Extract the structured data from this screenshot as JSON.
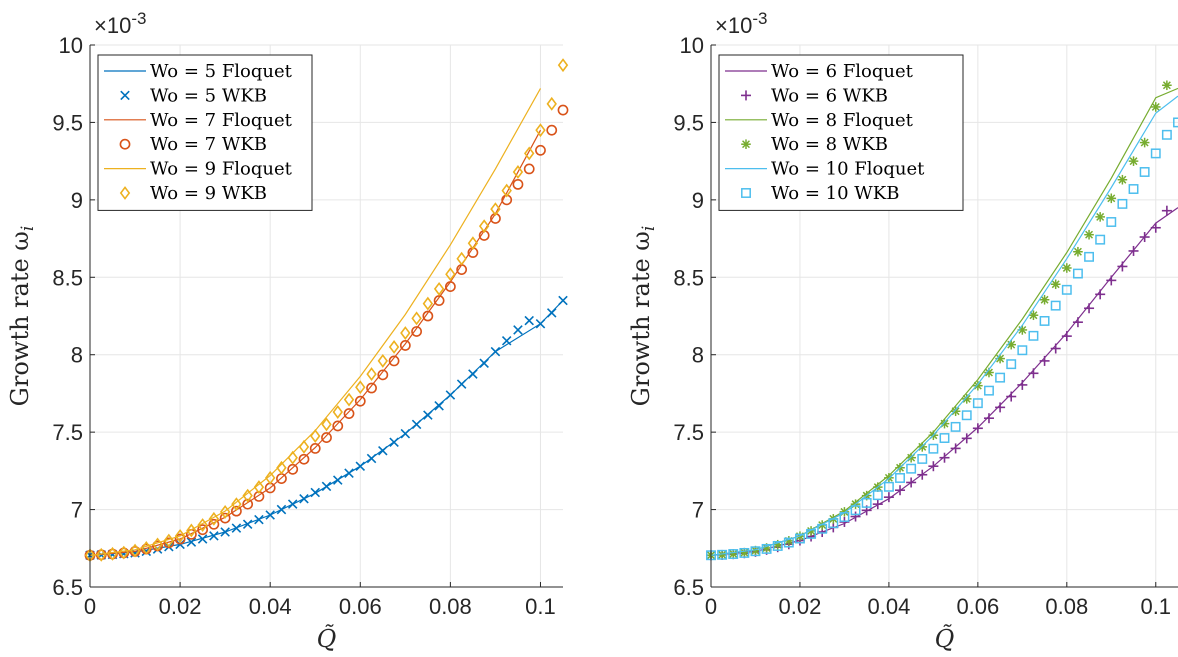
{
  "chart_data": [
    {
      "type": "line",
      "multiplier": "×10",
      "multiplier_exp": "-3",
      "xlabel": "Q̃",
      "ylabel": "Growth rate ω",
      "ylabel_sub": "i",
      "xlim": [
        0,
        0.105
      ],
      "ylim": [
        6.5,
        10
      ],
      "xticks": [
        0,
        0.02,
        0.04,
        0.06,
        0.08,
        0.1
      ],
      "xtick_labels": [
        "0",
        "0.02",
        "0.04",
        "0.06",
        "0.08",
        "0.1"
      ],
      "yticks": [
        6.5,
        7,
        7.5,
        8,
        8.5,
        9,
        9.5,
        10
      ],
      "ytick_labels": [
        "6.5",
        "7",
        "7.5",
        "8",
        "8.5",
        "9",
        "9.5",
        "10"
      ],
      "grid": true,
      "legend_position": "top-left",
      "groups": [
        {
          "wo": 5,
          "color": "#0072BD",
          "marker": "x",
          "floquet_label": "Wo = 5 Floquet",
          "wkb_label": "Wo = 5 WKB",
          "floquet": {
            "x": [
              0,
              0.01,
              0.02,
              0.03,
              0.04,
              0.05,
              0.06,
              0.07,
              0.08,
              0.09,
              0.1,
              0.105
            ],
            "y": [
              6.705,
              6.725,
              6.775,
              6.855,
              6.965,
              7.105,
              7.28,
              7.49,
              7.74,
              8.02,
              8.2,
              8.35
            ]
          },
          "wkb": {
            "x": [
              0,
              0.0025,
              0.005,
              0.0075,
              0.01,
              0.0125,
              0.015,
              0.0175,
              0.02,
              0.0225,
              0.025,
              0.0275,
              0.03,
              0.0325,
              0.035,
              0.0375,
              0.04,
              0.0425,
              0.045,
              0.0475,
              0.05,
              0.0525,
              0.055,
              0.0575,
              0.06,
              0.0625,
              0.065,
              0.0675,
              0.07,
              0.0725,
              0.075,
              0.0775,
              0.08,
              0.0825,
              0.085,
              0.0875,
              0.09,
              0.0925,
              0.095,
              0.0975,
              0.1,
              0.1025,
              0.105
            ],
            "y": [
              6.705,
              6.707,
              6.71,
              6.715,
              6.72,
              6.73,
              6.745,
              6.76,
              6.775,
              6.79,
              6.81,
              6.83,
              6.855,
              6.88,
              6.905,
              6.935,
              6.965,
              7.0,
              7.035,
              7.07,
              7.11,
              7.15,
              7.19,
              7.235,
              7.28,
              7.33,
              7.38,
              7.435,
              7.49,
              7.55,
              7.61,
              7.67,
              7.74,
              7.81,
              7.875,
              7.945,
              8.02,
              8.09,
              8.16,
              8.22,
              8.2,
              8.27,
              8.35
            ]
          }
        },
        {
          "wo": 7,
          "color": "#D95319",
          "marker": "o",
          "floquet_label": "Wo = 7 Floquet",
          "wkb_label": "Wo = 7 WKB",
          "floquet": {
            "x": [
              0,
              0.01,
              0.02,
              0.03,
              0.04,
              0.05,
              0.06,
              0.07,
              0.08,
              0.09,
              0.1
            ],
            "y": [
              6.705,
              6.73,
              6.81,
              6.95,
              7.14,
              7.4,
              7.71,
              8.07,
              8.47,
              8.91,
              9.45
            ]
          },
          "wkb": {
            "x": [
              0,
              0.0025,
              0.005,
              0.0075,
              0.01,
              0.0125,
              0.015,
              0.0175,
              0.02,
              0.0225,
              0.025,
              0.0275,
              0.03,
              0.0325,
              0.035,
              0.0375,
              0.04,
              0.0425,
              0.045,
              0.0475,
              0.05,
              0.0525,
              0.055,
              0.0575,
              0.06,
              0.0625,
              0.065,
              0.0675,
              0.07,
              0.0725,
              0.075,
              0.0775,
              0.08,
              0.0825,
              0.085,
              0.0875,
              0.09,
              0.0925,
              0.095,
              0.0975,
              0.1,
              0.1025,
              0.105
            ],
            "y": [
              6.705,
              6.708,
              6.713,
              6.72,
              6.73,
              6.745,
              6.765,
              6.785,
              6.81,
              6.84,
              6.87,
              6.905,
              6.945,
              6.99,
              7.035,
              7.085,
              7.14,
              7.2,
              7.26,
              7.325,
              7.395,
              7.465,
              7.54,
              7.62,
              7.7,
              7.785,
              7.87,
              7.96,
              8.06,
              8.15,
              8.25,
              8.35,
              8.44,
              8.55,
              8.66,
              8.77,
              8.88,
              9.0,
              9.1,
              9.2,
              9.32,
              9.45,
              9.58
            ]
          }
        },
        {
          "wo": 9,
          "color": "#EDB120",
          "marker": "diamond",
          "floquet_label": "Wo = 9 Floquet",
          "wkb_label": "Wo = 9 WKB",
          "floquet": {
            "x": [
              0,
              0.01,
              0.02,
              0.03,
              0.04,
              0.05,
              0.06,
              0.07,
              0.08,
              0.09,
              0.1
            ],
            "y": [
              6.705,
              6.74,
              6.83,
              6.99,
              7.22,
              7.51,
              7.86,
              8.26,
              8.71,
              9.2,
              9.72
            ]
          },
          "wkb": {
            "x": [
              0,
              0.0025,
              0.005,
              0.0075,
              0.01,
              0.0125,
              0.015,
              0.0175,
              0.02,
              0.0225,
              0.025,
              0.0275,
              0.03,
              0.0325,
              0.035,
              0.0375,
              0.04,
              0.0425,
              0.045,
              0.0475,
              0.05,
              0.0525,
              0.055,
              0.0575,
              0.06,
              0.0625,
              0.065,
              0.0675,
              0.07,
              0.0725,
              0.075,
              0.0775,
              0.08,
              0.0825,
              0.085,
              0.0875,
              0.09,
              0.0925,
              0.095,
              0.0975,
              0.1,
              0.1025,
              0.105
            ],
            "y": [
              6.705,
              6.708,
              6.714,
              6.722,
              6.735,
              6.752,
              6.775,
              6.8,
              6.83,
              6.865,
              6.9,
              6.94,
              6.985,
              7.035,
              7.09,
              7.145,
              7.205,
              7.27,
              7.335,
              7.405,
              7.475,
              7.55,
              7.63,
              7.71,
              7.79,
              7.875,
              7.96,
              8.05,
              8.14,
              8.235,
              8.33,
              8.425,
              8.52,
              8.62,
              8.72,
              8.83,
              8.94,
              9.06,
              9.18,
              9.3,
              9.45,
              9.62,
              9.87
            ]
          }
        }
      ]
    },
    {
      "type": "line",
      "multiplier": "×10",
      "multiplier_exp": "-3",
      "xlabel": "Q̃",
      "ylabel": "Growth rate ω",
      "ylabel_sub": "i",
      "xlim": [
        0,
        0.105
      ],
      "ylim": [
        6.5,
        10
      ],
      "xticks": [
        0,
        0.02,
        0.04,
        0.06,
        0.08,
        0.1
      ],
      "xtick_labels": [
        "0",
        "0.02",
        "0.04",
        "0.06",
        "0.08",
        "0.1"
      ],
      "yticks": [
        6.5,
        7,
        7.5,
        8,
        8.5,
        9,
        9.5,
        10
      ],
      "ytick_labels": [
        "6.5",
        "7",
        "7.5",
        "8",
        "8.5",
        "9",
        "9.5",
        "10"
      ],
      "grid": true,
      "legend_position": "top-left",
      "groups": [
        {
          "wo": 6,
          "color": "#7E2F8E",
          "marker": "plus",
          "floquet_label": "Wo = 6 Floquet",
          "wkb_label": "Wo = 6 WKB",
          "floquet": {
            "x": [
              0,
              0.01,
              0.02,
              0.03,
              0.04,
              0.05,
              0.06,
              0.07,
              0.08,
              0.09,
              0.1,
              0.105
            ],
            "y": [
              6.705,
              6.73,
              6.8,
              6.91,
              7.07,
              7.28,
              7.53,
              7.82,
              8.14,
              8.5,
              8.85,
              8.95
            ]
          },
          "wkb": {
            "x": [
              0,
              0.0025,
              0.005,
              0.0075,
              0.01,
              0.0125,
              0.015,
              0.0175,
              0.02,
              0.0225,
              0.025,
              0.0275,
              0.03,
              0.0325,
              0.035,
              0.0375,
              0.04,
              0.0425,
              0.045,
              0.0475,
              0.05,
              0.0525,
              0.055,
              0.0575,
              0.06,
              0.0625,
              0.065,
              0.0675,
              0.07,
              0.0725,
              0.075,
              0.0775,
              0.08,
              0.0825,
              0.085,
              0.0875,
              0.09,
              0.0925,
              0.095,
              0.0975,
              0.1,
              0.1025
            ],
            "y": [
              6.705,
              6.707,
              6.712,
              6.718,
              6.727,
              6.74,
              6.757,
              6.776,
              6.8,
              6.826,
              6.855,
              6.885,
              6.92,
              6.955,
              6.995,
              7.035,
              7.08,
              7.125,
              7.175,
              7.225,
              7.28,
              7.335,
              7.395,
              7.46,
              7.525,
              7.59,
              7.66,
              7.73,
              7.805,
              7.88,
              7.96,
              8.04,
              8.12,
              8.21,
              8.3,
              8.39,
              8.48,
              8.57,
              8.67,
              8.76,
              8.82,
              8.93
            ]
          }
        },
        {
          "wo": 8,
          "color": "#77AC30",
          "marker": "asterisk",
          "floquet_label": "Wo = 8 Floquet",
          "wkb_label": "Wo = 8 WKB",
          "floquet": {
            "x": [
              0,
              0.01,
              0.02,
              0.03,
              0.04,
              0.05,
              0.06,
              0.07,
              0.08,
              0.09,
              0.1,
              0.105
            ],
            "y": [
              6.705,
              6.74,
              6.83,
              6.99,
              7.22,
              7.5,
              7.84,
              8.23,
              8.66,
              9.14,
              9.66,
              9.72
            ]
          },
          "wkb": {
            "x": [
              0,
              0.0025,
              0.005,
              0.0075,
              0.01,
              0.0125,
              0.015,
              0.0175,
              0.02,
              0.0225,
              0.025,
              0.0275,
              0.03,
              0.0325,
              0.035,
              0.0375,
              0.04,
              0.0425,
              0.045,
              0.0475,
              0.05,
              0.0525,
              0.055,
              0.0575,
              0.06,
              0.0625,
              0.065,
              0.0675,
              0.07,
              0.0725,
              0.075,
              0.0775,
              0.08,
              0.0825,
              0.085,
              0.0875,
              0.09,
              0.0925,
              0.095,
              0.0975,
              0.1,
              0.1025
            ],
            "y": [
              6.705,
              6.708,
              6.714,
              6.722,
              6.735,
              6.752,
              6.773,
              6.798,
              6.828,
              6.862,
              6.9,
              6.94,
              6.985,
              7.035,
              7.09,
              7.145,
              7.205,
              7.27,
              7.335,
              7.405,
              7.48,
              7.555,
              7.635,
              7.715,
              7.8,
              7.885,
              7.975,
              8.065,
              8.16,
              8.255,
              8.355,
              8.455,
              8.56,
              8.665,
              8.775,
              8.89,
              9.01,
              9.13,
              9.25,
              9.37,
              9.6,
              9.74
            ]
          }
        },
        {
          "wo": 10,
          "color": "#4DBEEE",
          "marker": "square",
          "floquet_label": "Wo = 10 Floquet",
          "wkb_label": "Wo = 10 WKB",
          "floquet": {
            "x": [
              0,
              0.01,
              0.02,
              0.03,
              0.04,
              0.05,
              0.06,
              0.07,
              0.08,
              0.09,
              0.1,
              0.105
            ],
            "y": [
              6.705,
              6.74,
              6.83,
              6.98,
              7.2,
              7.48,
              7.81,
              8.19,
              8.62,
              9.08,
              9.56,
              9.67
            ]
          },
          "wkb": {
            "x": [
              0,
              0.0025,
              0.005,
              0.0075,
              0.01,
              0.0125,
              0.015,
              0.0175,
              0.02,
              0.0225,
              0.025,
              0.0275,
              0.03,
              0.0325,
              0.035,
              0.0375,
              0.04,
              0.0425,
              0.045,
              0.0475,
              0.05,
              0.0525,
              0.055,
              0.0575,
              0.06,
              0.0625,
              0.065,
              0.0675,
              0.07,
              0.0725,
              0.075,
              0.0775,
              0.08,
              0.0825,
              0.085,
              0.0875,
              0.09,
              0.0925,
              0.095,
              0.0975,
              0.1,
              0.1025,
              0.105
            ],
            "y": [
              6.705,
              6.708,
              6.713,
              6.72,
              6.731,
              6.746,
              6.765,
              6.787,
              6.813,
              6.843,
              6.876,
              6.912,
              6.952,
              6.996,
              7.043,
              7.093,
              7.147,
              7.204,
              7.264,
              7.327,
              7.393,
              7.462,
              7.534,
              7.609,
              7.687,
              7.768,
              7.852,
              7.939,
              8.029,
              8.122,
              8.218,
              8.317,
              8.419,
              8.524,
              8.632,
              8.743,
              8.857,
              8.974,
              9.07,
              9.18,
              9.3,
              9.42,
              9.5
            ]
          }
        }
      ]
    }
  ]
}
